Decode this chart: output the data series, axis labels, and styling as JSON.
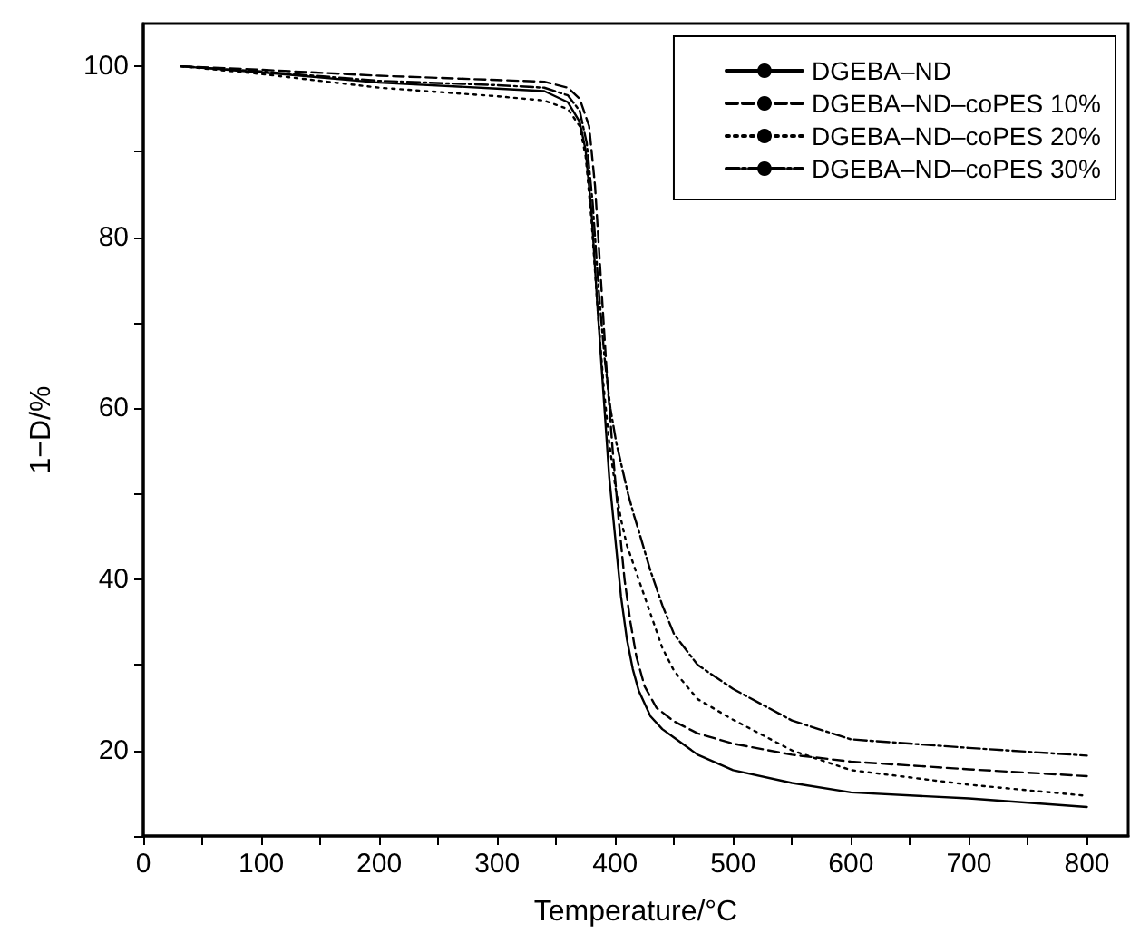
{
  "chart_data": {
    "type": "line",
    "xlabel": "Temperature/°C",
    "ylabel": "1−D/%",
    "xlim": [
      0,
      835
    ],
    "ylim": [
      10,
      105
    ],
    "xticks": [
      0,
      {
        "value": 50,
        "label": null
      },
      100,
      {
        "value": 150,
        "label": null
      },
      200,
      {
        "value": 250,
        "label": null
      },
      300,
      {
        "value": 350,
        "label": null
      },
      400,
      {
        "value": 450,
        "label": null
      },
      500,
      {
        "value": 550,
        "label": null
      },
      600,
      {
        "value": 650,
        "label": null
      },
      700,
      {
        "value": 750,
        "label": null
      },
      800
    ],
    "yticks": [
      {
        "value": 10,
        "label": null
      },
      20,
      {
        "value": 30,
        "label": null
      },
      40,
      {
        "value": 50,
        "label": null
      },
      60,
      {
        "value": 70,
        "label": null
      },
      80,
      {
        "value": 90,
        "label": null
      },
      100
    ],
    "grid": false,
    "legend": "top right",
    "marker": "none",
    "series": [
      {
        "name": "DGEBA–ND",
        "color": "#000000",
        "line_style": "solid",
        "x": [
          32,
          100,
          200,
          300,
          340,
          360,
          370,
          375,
          380,
          385,
          390,
          395,
          400,
          405,
          410,
          415,
          420,
          430,
          440,
          450,
          470,
          500,
          550,
          600,
          700,
          800
        ],
        "values": [
          100,
          99.3,
          98.1,
          97.4,
          97.1,
          95.8,
          93.5,
          90.2,
          83,
          72,
          62,
          52,
          45,
          38,
          33,
          29.5,
          27,
          24,
          22.5,
          21.5,
          19.5,
          17.7,
          16.2,
          15.1,
          14.4,
          13.4
        ]
      },
      {
        "name": "DGEBA–ND–coPES 10%",
        "color": "#000000",
        "line_style": "dashed",
        "x": [
          32,
          100,
          200,
          300,
          340,
          360,
          370,
          378,
          383,
          388,
          393,
          398,
          403,
          408,
          413,
          418,
          425,
          435,
          450,
          470,
          500,
          550,
          600,
          700,
          800
        ],
        "values": [
          100,
          99.6,
          98.9,
          98.4,
          98.2,
          97.5,
          96.2,
          93,
          86,
          75,
          64,
          55,
          47,
          40,
          35,
          31,
          27.5,
          25,
          23.4,
          22,
          20.8,
          19.5,
          18.7,
          17.8,
          17.0
        ]
      },
      {
        "name": "DGEBA–ND–coPES 20%",
        "color": "#000000",
        "line_style": "dotted",
        "x": [
          32,
          100,
          200,
          300,
          340,
          360,
          370,
          375,
          380,
          385,
          390,
          395,
          400,
          405,
          410,
          415,
          420,
          430,
          440,
          450,
          470,
          500,
          550,
          600,
          700,
          800
        ],
        "values": [
          100,
          99.1,
          97.5,
          96.5,
          96.0,
          95.0,
          93.0,
          89.5,
          82,
          72,
          63,
          56,
          51,
          47,
          44,
          42,
          40,
          36,
          32,
          29.3,
          26,
          23.6,
          20,
          17.7,
          16,
          14.7
        ]
      },
      {
        "name": "DGEBA–ND–coPES 30%",
        "color": "#000000",
        "line_style": "dashdot",
        "x": [
          32,
          100,
          200,
          300,
          340,
          360,
          370,
          376,
          381,
          386,
          391,
          396,
          401,
          406,
          411,
          416,
          420,
          430,
          440,
          450,
          470,
          500,
          550,
          600,
          700,
          800
        ],
        "values": [
          100,
          99.4,
          98.3,
          97.8,
          97.5,
          96.6,
          94.8,
          91,
          84,
          74,
          66,
          60,
          56,
          53,
          50,
          47.5,
          45.7,
          41,
          37,
          33.6,
          30,
          27.2,
          23.5,
          21.3,
          20.3,
          19.4
        ]
      }
    ]
  }
}
